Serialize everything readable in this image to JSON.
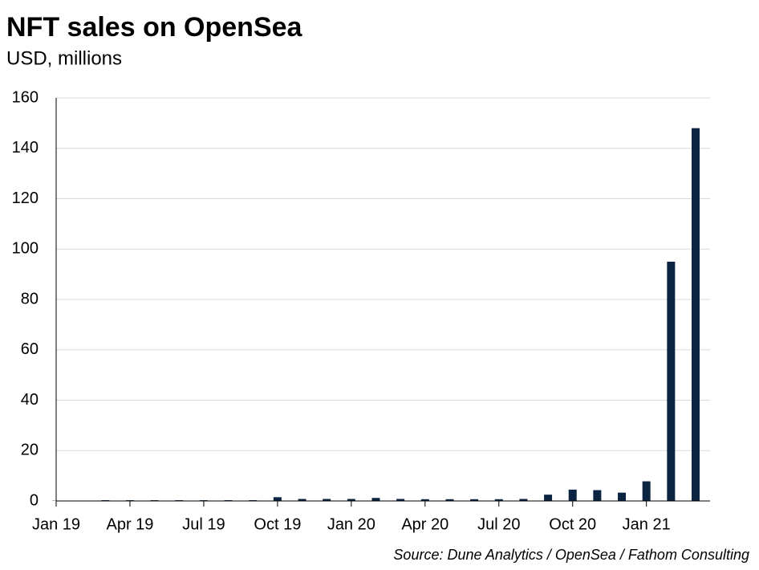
{
  "chart_data": {
    "type": "bar",
    "title": "NFT sales on OpenSea",
    "subtitle": "USD, millions",
    "source": "Source: Dune Analytics / OpenSea / Fathom Consulting",
    "categories": [
      "Jan 19",
      null,
      null,
      "Apr 19",
      null,
      null,
      "Jul 19",
      null,
      null,
      "Oct 19",
      null,
      null,
      "Jan 20",
      null,
      null,
      "Apr 20",
      null,
      null,
      "Jul 20",
      null,
      null,
      "Oct 20",
      null,
      null,
      "Jan 21",
      null,
      null
    ],
    "values": [
      0.1,
      0.1,
      0.3,
      0.3,
      0.3,
      0.3,
      0.3,
      0.3,
      0.3,
      1.5,
      0.8,
      0.8,
      0.8,
      1.2,
      0.8,
      0.7,
      0.7,
      0.7,
      0.7,
      0.8,
      2.5,
      4.5,
      4.3,
      3.3,
      7.8,
      95,
      148
    ],
    "color": "#0b2441",
    "ylim": [
      0,
      160
    ],
    "yticks": [
      0,
      20,
      40,
      60,
      80,
      100,
      120,
      140,
      160
    ],
    "grid": true
  }
}
